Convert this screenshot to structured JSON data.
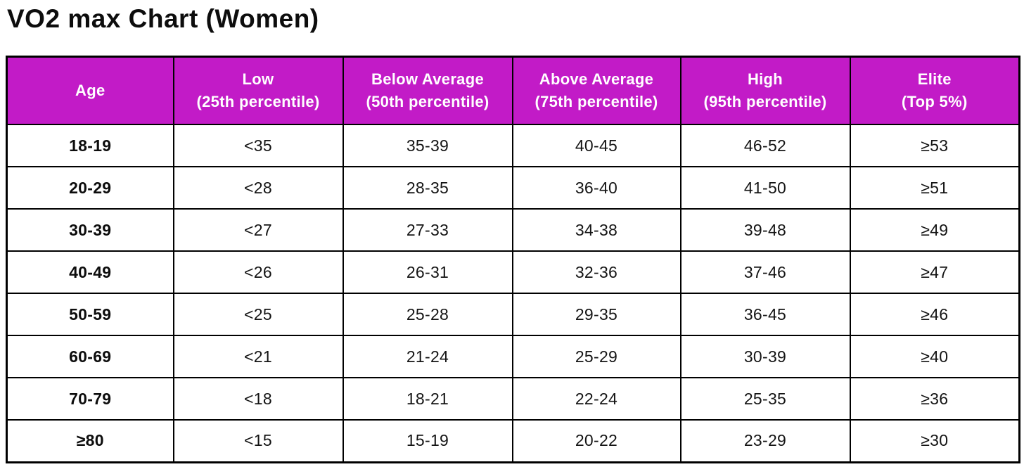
{
  "theme": {
    "header_bg": "#c21bc7",
    "header_text": "#ffffff",
    "border_color": "#000000",
    "body_text": "#141414",
    "background": "#ffffff"
  },
  "chart_data": {
    "type": "table",
    "title": "VO2 max Chart (Women)",
    "columns": [
      "Age",
      "Low\n(25th percentile)",
      "Below Average\n(50th percentile)",
      "Above Average\n(75th percentile)",
      "High\n(95th percentile)",
      "Elite\n(Top 5%)"
    ],
    "rows": [
      [
        "18-19",
        "<35",
        "35-39",
        "40-45",
        "46-52",
        "≥53"
      ],
      [
        "20-29",
        "<28",
        "28-35",
        "36-40",
        "41-50",
        "≥51"
      ],
      [
        "30-39",
        "<27",
        "27-33",
        "34-38",
        "39-48",
        "≥49"
      ],
      [
        "40-49",
        "<26",
        "26-31",
        "32-36",
        "37-46",
        "≥47"
      ],
      [
        "50-59",
        "<25",
        "25-28",
        "29-35",
        "36-45",
        "≥46"
      ],
      [
        "60-69",
        "<21",
        "21-24",
        "25-29",
        "30-39",
        "≥40"
      ],
      [
        "70-79",
        "<18",
        "18-21",
        "22-24",
        "25-35",
        "≥36"
      ],
      [
        "≥80",
        "<15",
        "15-19",
        "20-22",
        "23-29",
        "≥30"
      ]
    ]
  }
}
